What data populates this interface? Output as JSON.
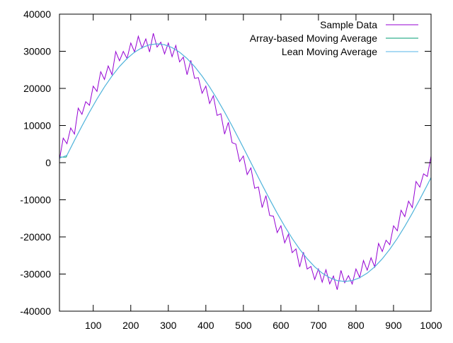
{
  "chart_data": {
    "type": "line",
    "title": "",
    "xlabel": "",
    "ylabel": "",
    "xlim": [
      10,
      1000
    ],
    "ylim": [
      -40000,
      40000
    ],
    "xticks": [
      100,
      200,
      300,
      400,
      500,
      600,
      700,
      800,
      900,
      1000
    ],
    "yticks": [
      -40000,
      -30000,
      -20000,
      -10000,
      0,
      10000,
      20000,
      30000,
      40000
    ],
    "grid": false,
    "legend_position": "top-right",
    "series": [
      {
        "name": "Sample Data",
        "color": "#9400d3",
        "x": [
          10,
          20,
          30,
          40,
          50,
          60,
          70,
          80,
          90,
          100,
          110,
          120,
          130,
          140,
          150,
          160,
          170,
          180,
          190,
          200,
          210,
          220,
          230,
          240,
          250,
          260,
          270,
          280,
          290,
          300,
          310,
          320,
          330,
          340,
          350,
          360,
          370,
          380,
          390,
          400,
          410,
          420,
          430,
          440,
          450,
          460,
          470,
          480,
          490,
          500,
          510,
          520,
          530,
          540,
          550,
          560,
          570,
          580,
          590,
          600,
          610,
          620,
          630,
          640,
          650,
          660,
          670,
          680,
          690,
          700,
          710,
          720,
          730,
          740,
          750,
          760,
          770,
          780,
          790,
          800,
          810,
          820,
          830,
          840,
          850,
          860,
          870,
          880,
          890,
          900,
          910,
          920,
          930,
          940,
          950,
          960,
          970,
          980,
          990,
          1000
        ],
        "y": [
          809,
          6611,
          5097,
          9358,
          7689,
          14680,
          13025,
          16416,
          15447,
          20609,
          19196,
          24503,
          22421,
          26046,
          23689,
          29917,
          27443,
          29957,
          28054,
          32234,
          29795,
          34033,
          30848,
          33337,
          29800,
          34837,
          31148,
          32433,
          29295,
          32234,
          28554,
          31557,
          27143,
          28417,
          23689,
          27546,
          22721,
          22903,
          18696,
          20609,
          15947,
          18016,
          12725,
          13180,
          7689,
          10858,
          5397,
          5011,
          309,
          1800,
          -3209,
          -1411,
          -6897,
          -6558,
          -12089,
          -8880,
          -14225,
          -14416,
          -18847,
          -17009,
          -21596,
          -19303,
          -24221,
          -23246,
          -28089,
          -24117,
          -28643,
          -27957,
          -31454,
          -28634,
          -32195,
          -28833,
          -32648,
          -30537,
          -34200,
          -29037,
          -32348,
          -30433,
          -32695,
          -28634,
          -30954,
          -26357,
          -28943,
          -25617,
          -28089,
          -21746,
          -23921,
          -20903,
          -22096,
          -17009,
          -18347,
          -12816,
          -14525,
          -10380,
          -12089,
          -5058,
          -6597,
          -3011,
          -3709,
          1800
        ]
      },
      {
        "name": "Array-based Moving Average",
        "color": "#009e73",
        "x": [
          10,
          28,
          30,
          50,
          70,
          90,
          110,
          130,
          150,
          170,
          190,
          210,
          230,
          250,
          270,
          290,
          310,
          330,
          350,
          370,
          390,
          410,
          430,
          450,
          470,
          490,
          510,
          530,
          550,
          570,
          590,
          610,
          630,
          650,
          670,
          690,
          710,
          730,
          750,
          770,
          790,
          810,
          830,
          850,
          870,
          890,
          910,
          930,
          950,
          970,
          990,
          1000
        ],
        "y": [
          1500,
          1500,
          2009,
          5997,
          9889,
          13625,
          17147,
          20396,
          23321,
          25889,
          28043,
          29754,
          30995,
          31748,
          32000,
          31748,
          30995,
          29754,
          28043,
          25889,
          23321,
          20396,
          17147,
          13625,
          9889,
          5997,
          2009,
          -2009,
          -5997,
          -9889,
          -13625,
          -17147,
          -20396,
          -23321,
          -25889,
          -28043,
          -29754,
          -30995,
          -31748,
          -32000,
          -31748,
          -30995,
          -29754,
          -28043,
          -25889,
          -23321,
          -20396,
          -17147,
          -13625,
          -9889,
          -5997,
          -4011
        ]
      },
      {
        "name": "Lean Moving Average",
        "color": "#56b4e9",
        "x": [
          10,
          30,
          50,
          70,
          90,
          110,
          130,
          150,
          170,
          190,
          210,
          230,
          250,
          270,
          290,
          310,
          330,
          350,
          370,
          390,
          410,
          430,
          450,
          470,
          490,
          510,
          530,
          550,
          570,
          590,
          610,
          630,
          650,
          670,
          690,
          710,
          730,
          750,
          770,
          790,
          810,
          830,
          850,
          870,
          890,
          910,
          930,
          950,
          970,
          990,
          1000
        ],
        "y": [
          1200,
          2009,
          5997,
          9889,
          13625,
          17147,
          20396,
          23321,
          25889,
          28043,
          29754,
          30995,
          31748,
          32000,
          31748,
          30995,
          29754,
          28043,
          25889,
          23321,
          20396,
          17147,
          13625,
          9889,
          5997,
          2009,
          -2009,
          -5997,
          -9889,
          -13625,
          -17147,
          -20396,
          -23321,
          -25889,
          -28043,
          -29754,
          -30995,
          -31748,
          -32000,
          -31748,
          -30995,
          -29754,
          -28043,
          -25889,
          -23321,
          -20396,
          -17147,
          -13625,
          -9889,
          -5997,
          -4011
        ]
      }
    ]
  }
}
